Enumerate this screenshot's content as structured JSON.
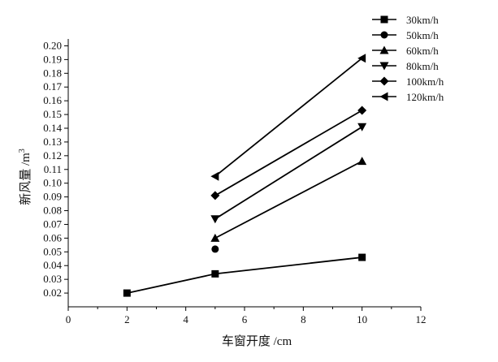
{
  "chart_data": {
    "type": "line",
    "title": "",
    "xlabel": "车窗开度 /cm",
    "ylabel": "新风量 /m",
    "ylabel_sup": "3",
    "xlim": [
      0,
      12
    ],
    "ylim": [
      0.01,
      0.205
    ],
    "xticks": [
      0,
      2,
      4,
      6,
      8,
      10,
      12
    ],
    "yticks": [
      0.02,
      0.03,
      0.04,
      0.05,
      0.06,
      0.07,
      0.08,
      0.09,
      0.1,
      0.11,
      0.12,
      0.13,
      0.14,
      0.15,
      0.16,
      0.17,
      0.18,
      0.19,
      0.2
    ],
    "grid": false,
    "legend_position": "top-right",
    "series": [
      {
        "name": "30km/h",
        "marker": "square",
        "points": [
          [
            2,
            0.02
          ],
          [
            5,
            0.034
          ],
          [
            10,
            0.046
          ]
        ]
      },
      {
        "name": "50km/h",
        "marker": "circle",
        "points": [
          [
            5,
            0.052
          ]
        ]
      },
      {
        "name": "60km/h",
        "marker": "triangle-up",
        "points": [
          [
            5,
            0.06
          ],
          [
            10,
            0.116
          ]
        ]
      },
      {
        "name": "80km/h",
        "marker": "triangle-down",
        "points": [
          [
            5,
            0.074
          ],
          [
            10,
            0.141
          ]
        ]
      },
      {
        "name": "100km/h",
        "marker": "diamond",
        "points": [
          [
            5,
            0.091
          ],
          [
            10,
            0.153
          ]
        ]
      },
      {
        "name": "120km/h",
        "marker": "triangle-left",
        "points": [
          [
            5,
            0.105
          ],
          [
            10,
            0.191
          ]
        ]
      }
    ]
  }
}
